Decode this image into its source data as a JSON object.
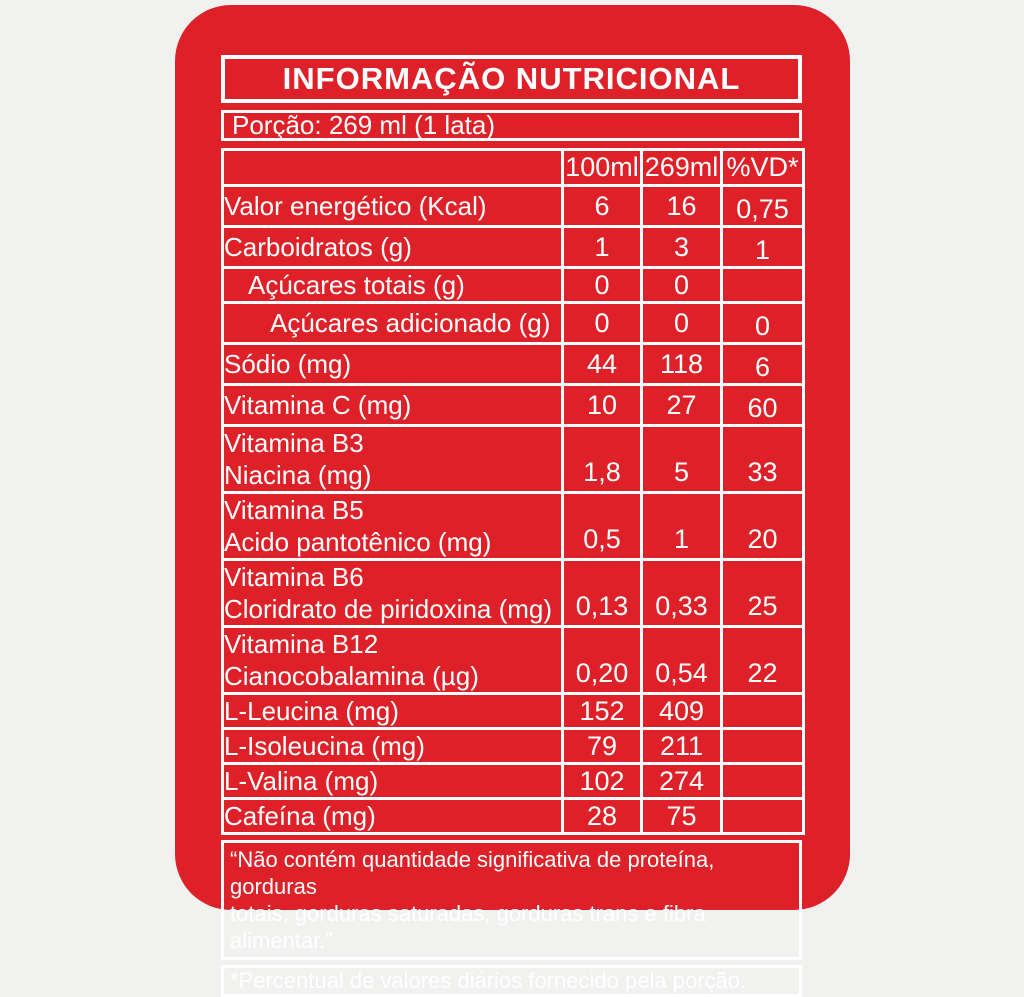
{
  "colors": {
    "background": "#f1f1f0",
    "label_red": "#de2128",
    "line_white": "#ffffff"
  },
  "label": {
    "title": "INFORMAÇÃO NUTRICIONAL",
    "serving": "Porção: 269 ml (1 lata)",
    "columns": [
      "100ml",
      "269ml",
      "%VD*"
    ],
    "rows": [
      {
        "name_lines": [
          "Valor energético (Kcal)"
        ],
        "indent": 0,
        "values": [
          "6",
          "16",
          "0,75"
        ]
      },
      {
        "name_lines": [
          "Carboidratos (g)"
        ],
        "indent": 0,
        "values": [
          "1",
          "3",
          "1"
        ]
      },
      {
        "name_lines": [
          "Açúcares totais (g)"
        ],
        "indent": 1,
        "values": [
          "0",
          "0",
          ""
        ]
      },
      {
        "name_lines": [
          "Açúcares adicionado (g)"
        ],
        "indent": 2,
        "values": [
          "0",
          "0",
          "0"
        ]
      },
      {
        "name_lines": [
          "Sódio (mg)"
        ],
        "indent": 0,
        "values": [
          "44",
          "118",
          "6"
        ]
      },
      {
        "name_lines": [
          "Vitamina C (mg)"
        ],
        "indent": 0,
        "values": [
          "10",
          "27",
          "60"
        ]
      },
      {
        "name_lines": [
          "Vitamina B3",
          "Niacina (mg)"
        ],
        "indent": 0,
        "values": [
          "1,8",
          "5",
          "33"
        ]
      },
      {
        "name_lines": [
          "Vitamina B5",
          "Acido pantotênico (mg)"
        ],
        "indent": 0,
        "values": [
          "0,5",
          "1",
          "20"
        ]
      },
      {
        "name_lines": [
          "Vitamina B6",
          "Cloridrato de piridoxina (mg)"
        ],
        "indent": 0,
        "values": [
          "0,13",
          "0,33",
          "25"
        ]
      },
      {
        "name_lines": [
          "Vitamina B12",
          "Cianocobalamina (µg)"
        ],
        "indent": 0,
        "values": [
          "0,20",
          "0,54",
          "22"
        ]
      },
      {
        "name_lines": [
          "L-Leucina (mg)"
        ],
        "indent": 0,
        "values": [
          "152",
          "409",
          ""
        ]
      },
      {
        "name_lines": [
          "L-Isoleucina (mg)"
        ],
        "indent": 0,
        "values": [
          "79",
          "211",
          ""
        ]
      },
      {
        "name_lines": [
          "L-Valina (mg)"
        ],
        "indent": 0,
        "values": [
          "102",
          "274",
          ""
        ]
      },
      {
        "name_lines": [
          "Cafeína (mg)"
        ],
        "indent": 0,
        "values": [
          "28",
          "75",
          ""
        ]
      }
    ],
    "footnote_lines": [
      "“Não contém quantidade significativa de proteína, gorduras",
      "totais, gorduras saturadas, gorduras trans e fibra alimentar.”"
    ],
    "daily_value_note": "*Percentual de valores diários fornecido pela porção."
  }
}
